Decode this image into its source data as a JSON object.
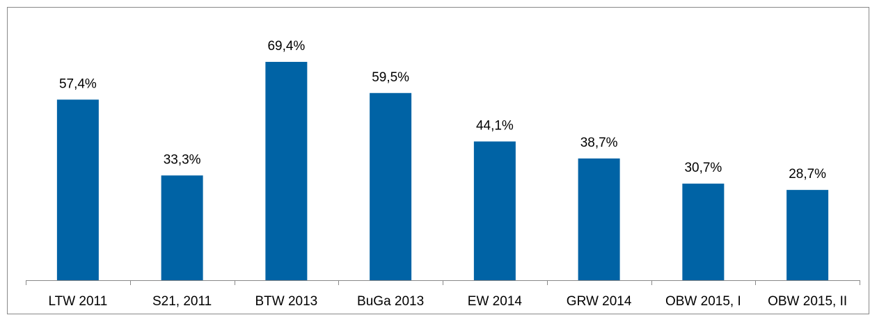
{
  "chart_data": {
    "type": "bar",
    "categories": [
      "LTW 2011",
      "S21, 2011",
      "BTW 2013",
      "BuGa 2013",
      "EW 2014",
      "GRW 2014",
      "OBW 2015, I",
      "OBW 2015, II"
    ],
    "values": [
      57.4,
      33.3,
      69.4,
      59.5,
      44.1,
      38.7,
      30.7,
      28.7
    ],
    "value_labels": [
      "57,4%",
      "33,3%",
      "69,4%",
      "59,5%",
      "44,1%",
      "38,7%",
      "30,7%",
      "28,7%"
    ],
    "color": "#0063a5",
    "ylim": [
      0,
      80
    ]
  }
}
